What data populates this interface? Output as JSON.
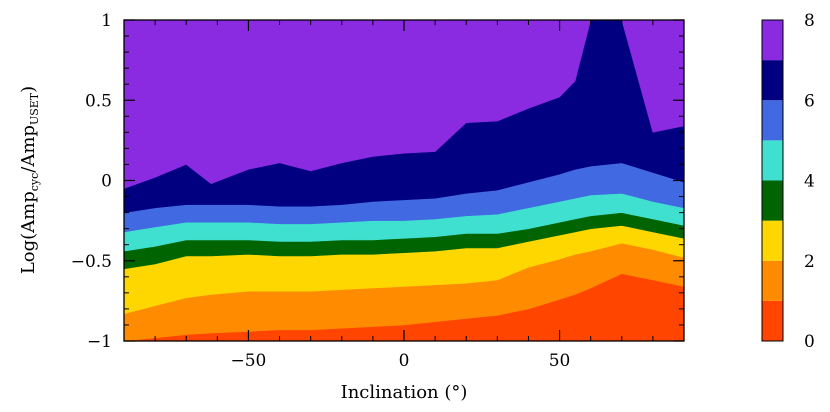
{
  "chart_data": {
    "type": "contour",
    "xlabel": "Inclination (°)",
    "ylabel": {
      "prefix": "Log(Amp",
      "sub1": "cyc",
      "middle": "/Amp",
      "sub2": "USET",
      "suffix": ")"
    },
    "xlim": [
      -90,
      90
    ],
    "ylim": [
      -1,
      1
    ],
    "x_ticks": [
      -50,
      0,
      50
    ],
    "x_tick_labels": [
      "−50",
      "0",
      "50"
    ],
    "y_ticks": [
      -1,
      -0.5,
      0,
      0.5,
      1
    ],
    "y_tick_labels": [
      "−1",
      "−0.5",
      "0",
      "0.5",
      "1"
    ],
    "colorbar": {
      "ticks": [
        0,
        2,
        4,
        6,
        8
      ],
      "tick_labels": [
        "0",
        "2",
        "4",
        "6",
        "8"
      ],
      "range": [
        0,
        8
      ]
    },
    "levels": [
      {
        "range": [
          0,
          1
        ],
        "color": "#ff4500"
      },
      {
        "range": [
          1,
          2
        ],
        "color": "#ff8c00"
      },
      {
        "range": [
          2,
          3
        ],
        "color": "#ffd700"
      },
      {
        "range": [
          3,
          4
        ],
        "color": "#006400"
      },
      {
        "range": [
          4,
          5
        ],
        "color": "#40e0d0"
      },
      {
        "range": [
          5,
          6
        ],
        "color": "#4169e1"
      },
      {
        "range": [
          6,
          7
        ],
        "color": "#000080"
      },
      {
        "range": [
          7,
          8
        ],
        "color": "#8a2be2"
      }
    ],
    "contour_x": [
      -90,
      -80,
      -70,
      -62,
      -50,
      -40,
      -30,
      -20,
      -10,
      0,
      10,
      20,
      30,
      40,
      50,
      55,
      60,
      70,
      80,
      90
    ],
    "boundaries": [
      [
        -1.0,
        -0.98,
        -0.96,
        -0.95,
        -0.94,
        -0.93,
        -0.93,
        -0.92,
        -0.91,
        -0.9,
        -0.88,
        -0.86,
        -0.84,
        -0.8,
        -0.74,
        -0.71,
        -0.67,
        -0.58,
        -0.62,
        -0.66
      ],
      [
        -0.83,
        -0.78,
        -0.73,
        -0.71,
        -0.69,
        -0.69,
        -0.69,
        -0.68,
        -0.67,
        -0.66,
        -0.65,
        -0.64,
        -0.62,
        -0.54,
        -0.49,
        -0.46,
        -0.44,
        -0.39,
        -0.43,
        -0.48
      ],
      [
        -0.55,
        -0.52,
        -0.47,
        -0.47,
        -0.46,
        -0.47,
        -0.47,
        -0.46,
        -0.46,
        -0.45,
        -0.44,
        -0.42,
        -0.42,
        -0.38,
        -0.34,
        -0.32,
        -0.3,
        -0.28,
        -0.32,
        -0.36
      ],
      [
        -0.44,
        -0.41,
        -0.37,
        -0.37,
        -0.37,
        -0.38,
        -0.38,
        -0.37,
        -0.37,
        -0.36,
        -0.35,
        -0.33,
        -0.33,
        -0.3,
        -0.26,
        -0.24,
        -0.22,
        -0.2,
        -0.24,
        -0.28
      ],
      [
        -0.32,
        -0.29,
        -0.26,
        -0.26,
        -0.26,
        -0.27,
        -0.27,
        -0.26,
        -0.25,
        -0.25,
        -0.24,
        -0.22,
        -0.21,
        -0.17,
        -0.13,
        -0.11,
        -0.09,
        -0.08,
        -0.13,
        -0.17
      ],
      [
        -0.2,
        -0.17,
        -0.15,
        -0.15,
        -0.15,
        -0.16,
        -0.16,
        -0.15,
        -0.13,
        -0.12,
        -0.11,
        -0.08,
        -0.06,
        -0.01,
        0.04,
        0.07,
        0.09,
        0.11,
        0.05,
        -0.01
      ],
      [
        -0.05,
        0.02,
        0.1,
        -0.02,
        0.07,
        0.11,
        0.06,
        0.11,
        0.15,
        0.17,
        0.18,
        0.36,
        0.37,
        0.45,
        0.52,
        0.62,
        1.0,
        1.0,
        0.3,
        0.34
      ],
      [
        1.0,
        1.0,
        1.0,
        1.0,
        1.0,
        1.0,
        1.0,
        1.0,
        1.0,
        1.0,
        1.0,
        1.0,
        1.0,
        1.0,
        1.0,
        1.0,
        1.0,
        1.0,
        1.0,
        1.0
      ]
    ]
  }
}
